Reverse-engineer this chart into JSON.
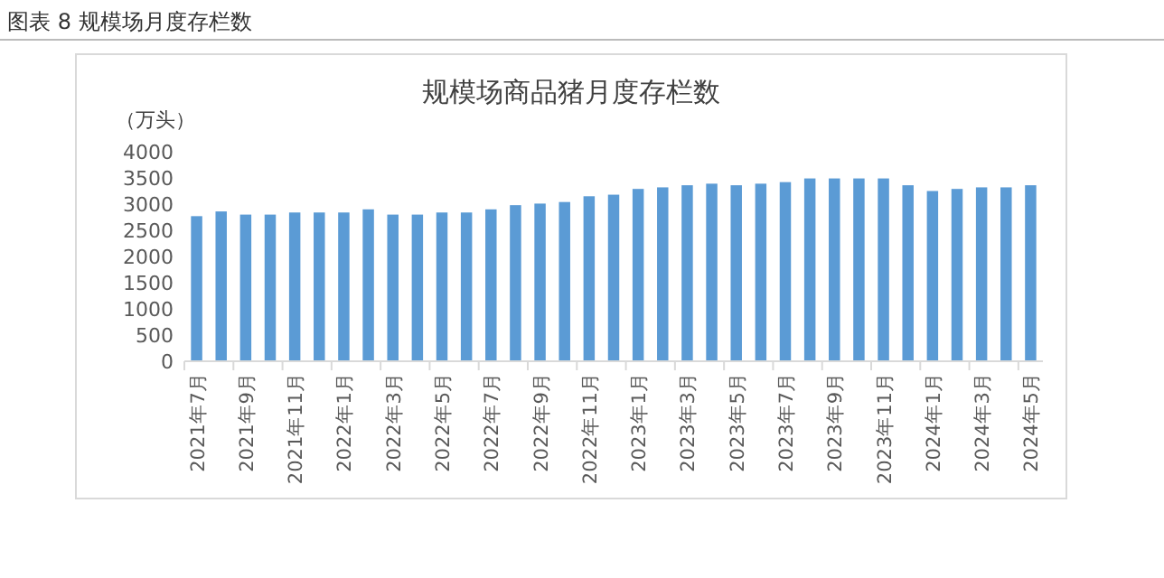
{
  "chart_data": {
    "type": "bar",
    "title": "规模场商品猪月度存栏数",
    "ylabel": "（万头）",
    "annotations": [
      "图表 8  规模场月度存栏数"
    ],
    "categories": [
      "2021年7月",
      null,
      "2021年9月",
      null,
      "2021年11月",
      null,
      "2022年1月",
      null,
      "2022年3月",
      null,
      "2022年5月",
      null,
      "2022年7月",
      null,
      "2022年9月",
      null,
      "2022年11月",
      null,
      "2023年1月",
      null,
      "2023年3月",
      null,
      "2023年5月",
      null,
      "2023年7月",
      null,
      "2023年9月",
      null,
      "2023年11月",
      null,
      "2024年1月",
      null,
      "2024年3月",
      null,
      "2024年5月"
    ],
    "values": [
      2770,
      2860,
      2800,
      2800,
      2840,
      2840,
      2840,
      2900,
      2800,
      2800,
      2840,
      2840,
      2900,
      2980,
      3010,
      3040,
      3150,
      3180,
      3290,
      3320,
      3360,
      3390,
      3360,
      3390,
      3420,
      3490,
      3490,
      3490,
      3490,
      3360,
      3250,
      3290,
      3320,
      3320,
      3360
    ],
    "color": "#5b9bd5",
    "ylim": [
      0,
      4000
    ],
    "yticks": [
      0,
      500,
      1000,
      1500,
      2000,
      2500,
      3000,
      3500,
      4000
    ]
  }
}
